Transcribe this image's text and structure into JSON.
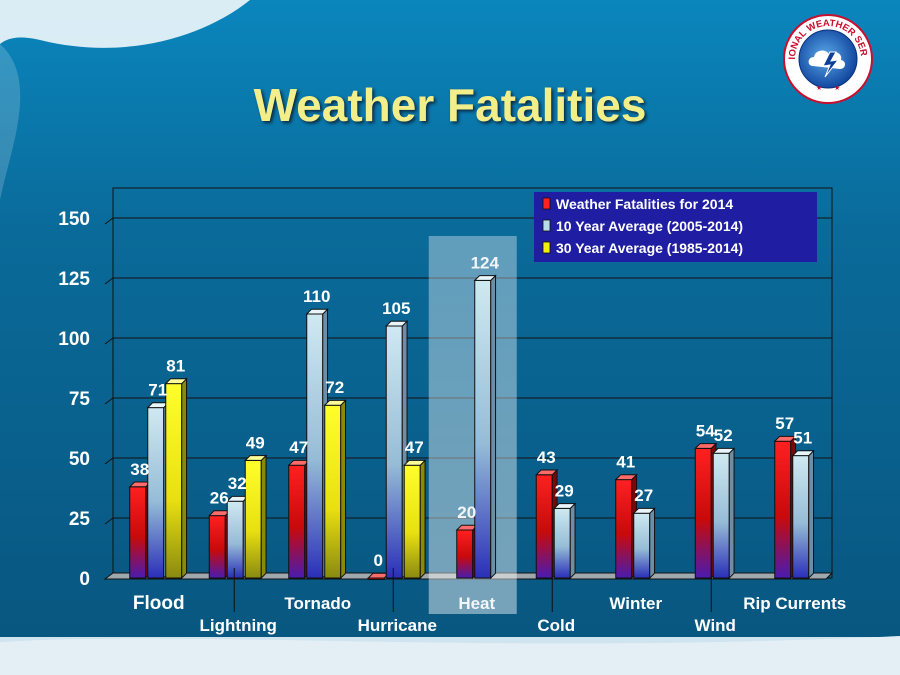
{
  "slide": {
    "title": "Weather Fatalities",
    "logo_text": "NATIONAL WEATHER SERVICE"
  },
  "chart_data": {
    "type": "bar",
    "title": "Weather Fatalities",
    "xlabel": "",
    "ylabel": "",
    "ylim": [
      0,
      150
    ],
    "yticks": [
      0,
      25,
      50,
      75,
      100,
      125,
      150
    ],
    "grid": true,
    "legend_position": "top-right",
    "categories": [
      "Flood",
      "Lightning",
      "Tornado",
      "Hurricane",
      "Heat",
      "Cold",
      "Winter",
      "Wind",
      "Rip Currents"
    ],
    "highlighted_category": "Heat",
    "series": [
      {
        "name": "Weather Fatalities for 2014",
        "color": "#e01010",
        "values": [
          38,
          26,
          47,
          0,
          20,
          43,
          41,
          54,
          57
        ]
      },
      {
        "name": "10 Year Average (2005-2014)",
        "color": "#b8dbe8",
        "values": [
          71,
          32,
          110,
          105,
          124,
          29,
          27,
          52,
          51
        ]
      },
      {
        "name": "30 Year Average (1985-2014)",
        "color": "#f0ee10",
        "values": [
          81,
          49,
          72,
          47,
          null,
          null,
          null,
          null,
          null
        ]
      }
    ]
  }
}
